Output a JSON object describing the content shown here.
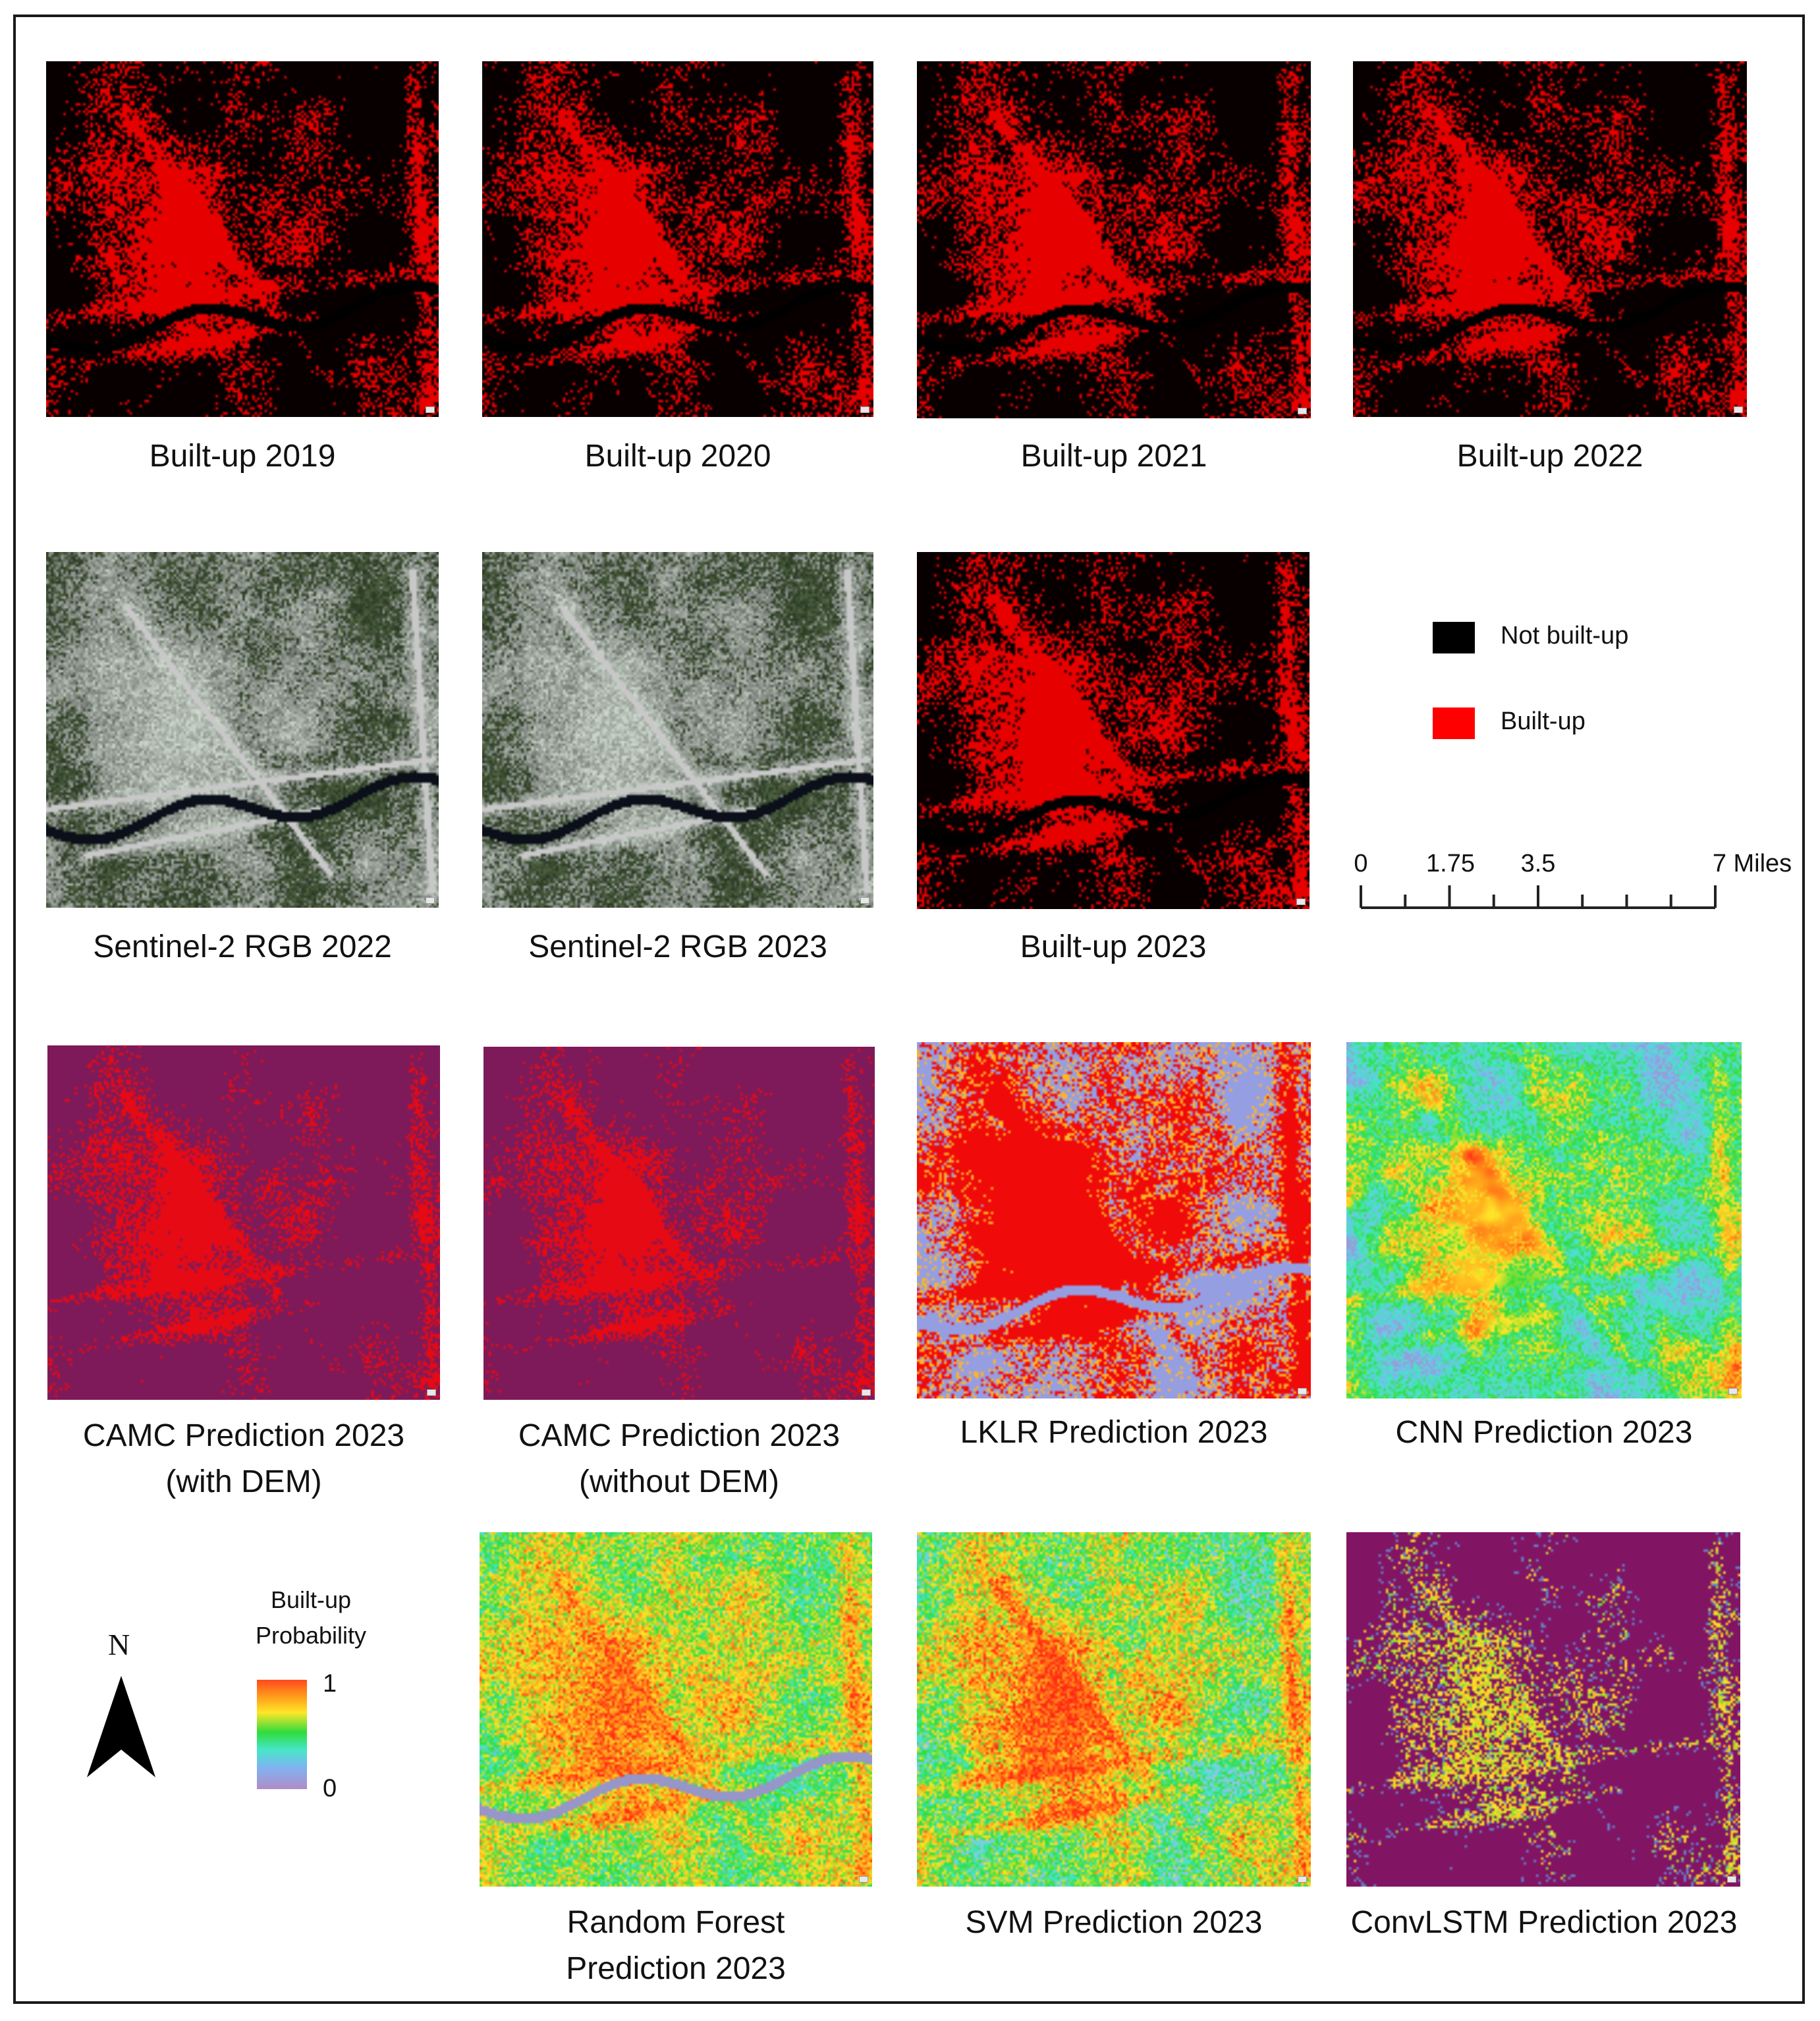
{
  "panels": [
    {
      "id": "builtup_2019",
      "caption": "Built-up 2019",
      "style": "binary"
    },
    {
      "id": "builtup_2020",
      "caption": "Built-up 2020",
      "style": "binary"
    },
    {
      "id": "builtup_2021",
      "caption": "Built-up 2021",
      "style": "binary"
    },
    {
      "id": "builtup_2022",
      "caption": "Built-up 2022",
      "style": "binary"
    },
    {
      "id": "sentinel_2022",
      "caption": "Sentinel-2 RGB 2022",
      "style": "rgb"
    },
    {
      "id": "sentinel_2023",
      "caption": "Sentinel-2 RGB 2023",
      "style": "rgb"
    },
    {
      "id": "builtup_2023",
      "caption": "Built-up 2023",
      "style": "binary"
    },
    {
      "id": "camc_dem",
      "caption": "CAMC Prediction 2023",
      "caption2": "(with DEM)",
      "style": "camc"
    },
    {
      "id": "camc_nodem",
      "caption": "CAMC Prediction 2023",
      "caption2": "(without DEM)",
      "style": "camc"
    },
    {
      "id": "lklr",
      "caption": "LKLR Prediction 2023",
      "style": "lklr"
    },
    {
      "id": "cnn",
      "caption": "CNN Prediction 2023",
      "style": "cnn"
    },
    {
      "id": "rf",
      "caption": "Random Forest",
      "caption2": "Prediction 2023",
      "style": "rf"
    },
    {
      "id": "svm",
      "caption": "SVM Prediction 2023",
      "style": "svm"
    },
    {
      "id": "convlstm",
      "caption": "ConvLSTM Prediction 2023",
      "style": "convlstm"
    }
  ],
  "legend": {
    "not_builtup": {
      "label": "Not built-up",
      "color": "#000000"
    },
    "builtup": {
      "label": "Built-up",
      "color": "#ff0000"
    }
  },
  "scale_bar": {
    "labels": [
      "0",
      "1.75",
      "3.5",
      "7 Miles"
    ],
    "ticks_miles": [
      0,
      1.75,
      3.5,
      7
    ],
    "max_miles": 7
  },
  "probability_legend": {
    "title_line1": "Built-up",
    "title_line2": "Probability",
    "max_label": "1",
    "min_label": "0"
  },
  "north_arrow": {
    "label": "N"
  }
}
